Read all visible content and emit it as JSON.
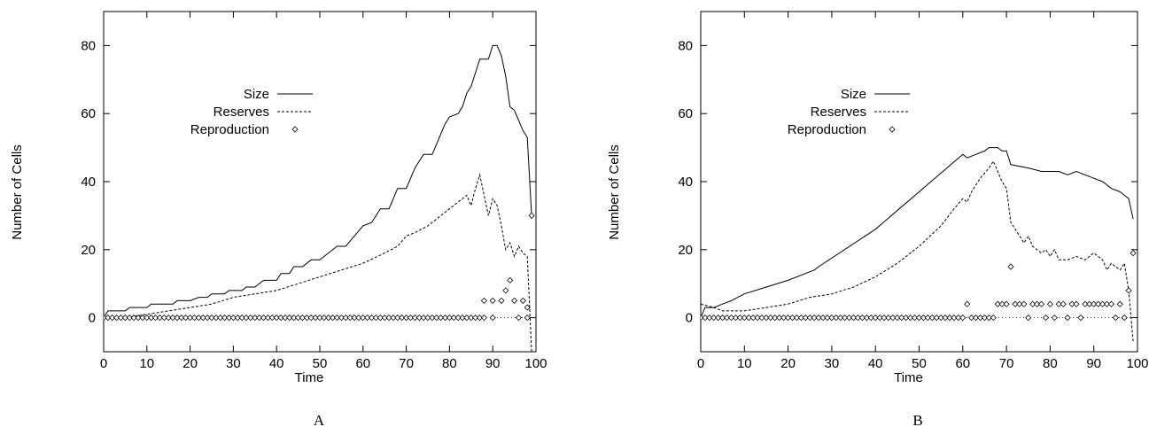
{
  "chart_data": [
    {
      "type": "line",
      "panel_label": "A",
      "xlabel": "Time",
      "ylabel": "Number of Cells",
      "xlim": [
        0,
        100
      ],
      "ylim": [
        -10,
        90
      ],
      "xticks": [
        0,
        10,
        20,
        30,
        40,
        50,
        60,
        70,
        80,
        90,
        100
      ],
      "yticks": [
        0,
        20,
        40,
        60,
        80
      ],
      "zero_line": true,
      "legend": "top-right",
      "series": [
        {
          "name": "Size",
          "style": "solid",
          "kind": "line",
          "points": [
            [
              0,
              0
            ],
            [
              1,
              2
            ],
            [
              5,
              2
            ],
            [
              6,
              3
            ],
            [
              10,
              3
            ],
            [
              11,
              4
            ],
            [
              16,
              4
            ],
            [
              17,
              5
            ],
            [
              20,
              5
            ],
            [
              22,
              6
            ],
            [
              24,
              6
            ],
            [
              25,
              7
            ],
            [
              28,
              7
            ],
            [
              29,
              8
            ],
            [
              32,
              8
            ],
            [
              33,
              9
            ],
            [
              35,
              9
            ],
            [
              37,
              11
            ],
            [
              40,
              11
            ],
            [
              41,
              13
            ],
            [
              43,
              13
            ],
            [
              44,
              15
            ],
            [
              46,
              15
            ],
            [
              48,
              17
            ],
            [
              50,
              17
            ],
            [
              52,
              19
            ],
            [
              54,
              21
            ],
            [
              56,
              21
            ],
            [
              58,
              24
            ],
            [
              60,
              27
            ],
            [
              62,
              28
            ],
            [
              64,
              32
            ],
            [
              66,
              32
            ],
            [
              67,
              35
            ],
            [
              68,
              38
            ],
            [
              70,
              38
            ],
            [
              71,
              41
            ],
            [
              72,
              44
            ],
            [
              74,
              48
            ],
            [
              76,
              48
            ],
            [
              77,
              51
            ],
            [
              78,
              54
            ],
            [
              79,
              57
            ],
            [
              80,
              59
            ],
            [
              82,
              60
            ],
            [
              83,
              62
            ],
            [
              84,
              66
            ],
            [
              85,
              68
            ],
            [
              86,
              72
            ],
            [
              87,
              76
            ],
            [
              88,
              76
            ],
            [
              89,
              76
            ],
            [
              90,
              80
            ],
            [
              91,
              80
            ],
            [
              92,
              77
            ],
            [
              93,
              71
            ],
            [
              94,
              62
            ],
            [
              95,
              61
            ],
            [
              96,
              58
            ],
            [
              97,
              55
            ],
            [
              98,
              53
            ],
            [
              99,
              30
            ]
          ]
        },
        {
          "name": "Reserves",
          "style": "dashed",
          "kind": "line",
          "points": [
            [
              0,
              0
            ],
            [
              5,
              0
            ],
            [
              10,
              1
            ],
            [
              15,
              2
            ],
            [
              20,
              3
            ],
            [
              25,
              4
            ],
            [
              30,
              6
            ],
            [
              35,
              7
            ],
            [
              40,
              8
            ],
            [
              45,
              10
            ],
            [
              50,
              12
            ],
            [
              55,
              14
            ],
            [
              60,
              16
            ],
            [
              65,
              19
            ],
            [
              68,
              21
            ],
            [
              70,
              24
            ],
            [
              72,
              25
            ],
            [
              75,
              27
            ],
            [
              77,
              29
            ],
            [
              80,
              32
            ],
            [
              82,
              34
            ],
            [
              84,
              36
            ],
            [
              85,
              33
            ],
            [
              86,
              38
            ],
            [
              87,
              42
            ],
            [
              88,
              36
            ],
            [
              89,
              30
            ],
            [
              90,
              35
            ],
            [
              91,
              33
            ],
            [
              92,
              27
            ],
            [
              93,
              20
            ],
            [
              94,
              22
            ],
            [
              95,
              18
            ],
            [
              96,
              21
            ],
            [
              97,
              19
            ],
            [
              98,
              18
            ],
            [
              99,
              -10
            ]
          ]
        },
        {
          "name": "Reproduction",
          "style": "diamond",
          "kind": "scatter",
          "x": [
            0,
            1,
            2,
            3,
            4,
            5,
            6,
            7,
            8,
            9,
            10,
            11,
            12,
            13,
            14,
            15,
            16,
            17,
            18,
            19,
            20,
            21,
            22,
            23,
            24,
            25,
            26,
            27,
            28,
            29,
            30,
            31,
            32,
            33,
            34,
            35,
            36,
            37,
            38,
            39,
            40,
            41,
            42,
            43,
            44,
            45,
            46,
            47,
            48,
            49,
            50,
            51,
            52,
            53,
            54,
            55,
            56,
            57,
            58,
            59,
            60,
            61,
            62,
            63,
            64,
            65,
            66,
            67,
            68,
            69,
            70,
            71,
            72,
            73,
            74,
            75,
            76,
            77,
            78,
            79,
            80,
            81,
            82,
            83,
            84,
            85,
            86,
            87,
            88,
            88,
            90,
            90,
            92,
            93,
            94,
            95,
            96,
            97,
            98,
            98,
            99
          ],
          "y": [
            0,
            0,
            0,
            0,
            0,
            0,
            0,
            0,
            0,
            0,
            0,
            0,
            0,
            0,
            0,
            0,
            0,
            0,
            0,
            0,
            0,
            0,
            0,
            0,
            0,
            0,
            0,
            0,
            0,
            0,
            0,
            0,
            0,
            0,
            0,
            0,
            0,
            0,
            0,
            0,
            0,
            0,
            0,
            0,
            0,
            0,
            0,
            0,
            0,
            0,
            0,
            0,
            0,
            0,
            0,
            0,
            0,
            0,
            0,
            0,
            0,
            0,
            0,
            0,
            0,
            0,
            0,
            0,
            0,
            0,
            0,
            0,
            0,
            0,
            0,
            0,
            0,
            0,
            0,
            0,
            0,
            0,
            0,
            0,
            0,
            0,
            0,
            0,
            0,
            5,
            0,
            5,
            5,
            8,
            11,
            5,
            0,
            5,
            0,
            3,
            30
          ]
        }
      ]
    },
    {
      "type": "line",
      "panel_label": "B",
      "xlabel": "Time",
      "ylabel": "Number of Cells",
      "xlim": [
        0,
        100
      ],
      "ylim": [
        -10,
        90
      ],
      "xticks": [
        0,
        10,
        20,
        30,
        40,
        50,
        60,
        70,
        80,
        90,
        100
      ],
      "yticks": [
        0,
        20,
        40,
        60,
        80
      ],
      "zero_line": true,
      "legend": "top-right",
      "series": [
        {
          "name": "Size",
          "style": "solid",
          "kind": "line",
          "points": [
            [
              0,
              0
            ],
            [
              1,
              3
            ],
            [
              3,
              3
            ],
            [
              5,
              4
            ],
            [
              7,
              5
            ],
            [
              10,
              7
            ],
            [
              15,
              9
            ],
            [
              20,
              11
            ],
            [
              24,
              13
            ],
            [
              26,
              14
            ],
            [
              27,
              15
            ],
            [
              40,
              26
            ],
            [
              50,
              37
            ],
            [
              60,
              48
            ],
            [
              61,
              47
            ],
            [
              63,
              48
            ],
            [
              65,
              49
            ],
            [
              66,
              50
            ],
            [
              68,
              50
            ],
            [
              69,
              49
            ],
            [
              70,
              49
            ],
            [
              71,
              45
            ],
            [
              75,
              44
            ],
            [
              78,
              43
            ],
            [
              82,
              43
            ],
            [
              84,
              42
            ],
            [
              86,
              43
            ],
            [
              88,
              42
            ],
            [
              90,
              41
            ],
            [
              92,
              40
            ],
            [
              94,
              38
            ],
            [
              96,
              37
            ],
            [
              98,
              35
            ],
            [
              99,
              29
            ]
          ]
        },
        {
          "name": "Reserves",
          "style": "dashed",
          "kind": "line",
          "points": [
            [
              0,
              4
            ],
            [
              3,
              3
            ],
            [
              5,
              2
            ],
            [
              10,
              2
            ],
            [
              15,
              3
            ],
            [
              20,
              4
            ],
            [
              25,
              6
            ],
            [
              30,
              7
            ],
            [
              35,
              9
            ],
            [
              40,
              12
            ],
            [
              45,
              16
            ],
            [
              50,
              21
            ],
            [
              55,
              27
            ],
            [
              58,
              32
            ],
            [
              60,
              35
            ],
            [
              61,
              34
            ],
            [
              62,
              37
            ],
            [
              64,
              41
            ],
            [
              66,
              44
            ],
            [
              67,
              46
            ],
            [
              68,
              43
            ],
            [
              69,
              40
            ],
            [
              70,
              38
            ],
            [
              71,
              28
            ],
            [
              72,
              26
            ],
            [
              73,
              24
            ],
            [
              74,
              22
            ],
            [
              75,
              24
            ],
            [
              76,
              21
            ],
            [
              78,
              19
            ],
            [
              79,
              20
            ],
            [
              80,
              18
            ],
            [
              81,
              20
            ],
            [
              82,
              17
            ],
            [
              84,
              17
            ],
            [
              86,
              18
            ],
            [
              88,
              17
            ],
            [
              90,
              19
            ],
            [
              92,
              17
            ],
            [
              93,
              14
            ],
            [
              94,
              16
            ],
            [
              96,
              14
            ],
            [
              97,
              16
            ],
            [
              98,
              8
            ],
            [
              99,
              -7
            ]
          ]
        },
        {
          "name": "Reproduction",
          "style": "diamond",
          "kind": "scatter",
          "x": [
            0,
            1,
            2,
            3,
            4,
            5,
            6,
            7,
            8,
            9,
            10,
            11,
            12,
            13,
            14,
            15,
            16,
            17,
            18,
            19,
            20,
            21,
            22,
            23,
            24,
            25,
            26,
            27,
            28,
            29,
            30,
            31,
            32,
            33,
            34,
            35,
            36,
            37,
            38,
            39,
            40,
            41,
            42,
            43,
            44,
            45,
            46,
            47,
            48,
            49,
            50,
            51,
            52,
            53,
            54,
            55,
            56,
            57,
            58,
            59,
            60,
            61,
            62,
            63,
            64,
            65,
            66,
            67,
            68,
            69,
            70,
            71,
            72,
            73,
            74,
            75,
            76,
            77,
            78,
            79,
            80,
            81,
            82,
            83,
            84,
            85,
            86,
            87,
            88,
            89,
            90,
            91,
            92,
            93,
            94,
            95,
            96,
            97,
            98,
            99
          ],
          "y": [
            0,
            0,
            0,
            0,
            0,
            0,
            0,
            0,
            0,
            0,
            0,
            0,
            0,
            0,
            0,
            0,
            0,
            0,
            0,
            0,
            0,
            0,
            0,
            0,
            0,
            0,
            0,
            0,
            0,
            0,
            0,
            0,
            0,
            0,
            0,
            0,
            0,
            0,
            0,
            0,
            0,
            0,
            0,
            0,
            0,
            0,
            0,
            0,
            0,
            0,
            0,
            0,
            0,
            0,
            0,
            0,
            0,
            0,
            0,
            0,
            0,
            4,
            0,
            0,
            0,
            0,
            0,
            0,
            4,
            4,
            4,
            15,
            4,
            4,
            4,
            0,
            4,
            4,
            4,
            0,
            4,
            0,
            4,
            4,
            0,
            4,
            4,
            0,
            4,
            4,
            4,
            4,
            4,
            4,
            4,
            0,
            4,
            0,
            8,
            19
          ]
        }
      ]
    }
  ]
}
